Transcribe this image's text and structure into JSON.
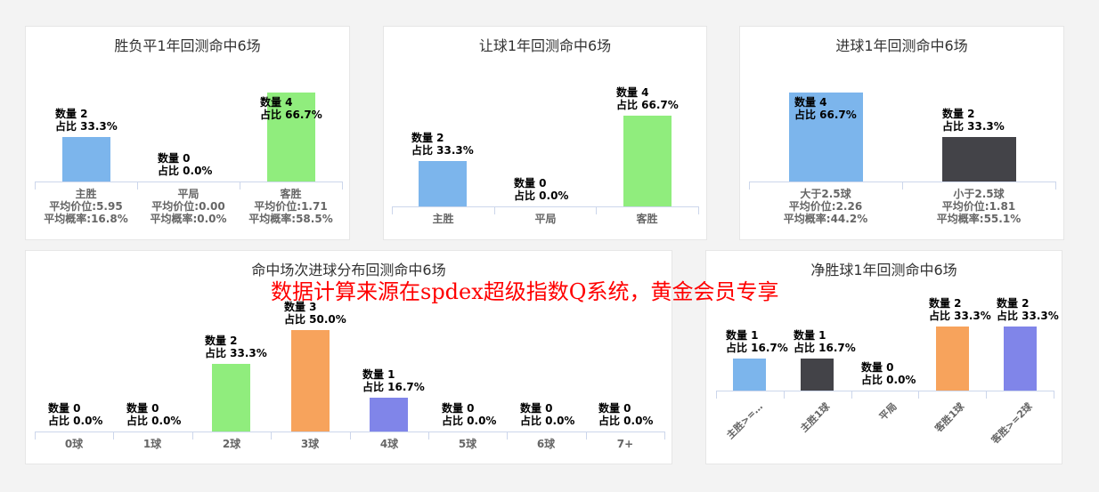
{
  "watermark": "数据计算来源在spdex超级指数Q系统，黄金会员专享",
  "colors": {
    "blue": "#7cb5ec",
    "green": "#90ed7d",
    "dark": "#434348",
    "orange": "#f7a35c",
    "purple": "#8085e9",
    "axis": "#ccd6eb",
    "background": "#f3f3f3"
  },
  "chart_data": [
    {
      "type": "bar",
      "title": "胜负平1年回测命中6场",
      "categories": [
        "主胜",
        "平局",
        "客胜"
      ],
      "values": [
        2,
        0,
        4
      ],
      "percents": [
        "33.3%",
        "0.0%",
        "66.7%"
      ],
      "avg_odds": [
        "5.95",
        "0.00",
        "1.71"
      ],
      "avg_prob": [
        "16.8%",
        "0.0%",
        "58.5%"
      ],
      "colors": [
        "#7cb5ec",
        "#434348",
        "#90ed7d"
      ]
    },
    {
      "type": "bar",
      "title": "让球1年回测命中6场",
      "categories": [
        "主胜",
        "平局",
        "客胜"
      ],
      "values": [
        2,
        0,
        4
      ],
      "percents": [
        "33.3%",
        "0.0%",
        "66.7%"
      ],
      "colors": [
        "#7cb5ec",
        "#434348",
        "#90ed7d"
      ]
    },
    {
      "type": "bar",
      "title": "进球1年回测命中6场",
      "categories": [
        "大于2.5球",
        "小于2.5球"
      ],
      "values": [
        4,
        2
      ],
      "percents": [
        "66.7%",
        "33.3%"
      ],
      "avg_odds": [
        "2.26",
        "1.81"
      ],
      "avg_prob": [
        "44.2%",
        "55.1%"
      ],
      "colors": [
        "#7cb5ec",
        "#434348"
      ]
    },
    {
      "type": "bar",
      "title": "命中场次进球分布回测命中6场",
      "categories": [
        "0球",
        "1球",
        "2球",
        "3球",
        "4球",
        "5球",
        "6球",
        "7+"
      ],
      "values": [
        0,
        0,
        2,
        3,
        1,
        0,
        0,
        0
      ],
      "percents": [
        "0.0%",
        "0.0%",
        "33.3%",
        "50.0%",
        "16.7%",
        "0.0%",
        "0.0%",
        "0.0%"
      ],
      "colors": [
        "#7cb5ec",
        "#434348",
        "#90ed7d",
        "#f7a35c",
        "#8085e9",
        "#f15c80",
        "#e4d354",
        "#2b908f"
      ]
    },
    {
      "type": "bar",
      "title": "净胜球1年回测命中6场",
      "categories": [
        "主胜>=…",
        "主胜1球",
        "平局",
        "客胜1球",
        "客胜>=2球"
      ],
      "values": [
        1,
        1,
        0,
        2,
        2
      ],
      "percents": [
        "16.7%",
        "16.7%",
        "0.0%",
        "33.3%",
        "33.3%"
      ],
      "colors": [
        "#7cb5ec",
        "#434348",
        "#90ed7d",
        "#f7a35c",
        "#8085e9"
      ]
    }
  ],
  "labels": {
    "count_prefix": "数量",
    "ratio_prefix": "占比",
    "avg_odds_prefix": "平均价位:",
    "avg_prob_prefix": "平均概率:"
  }
}
